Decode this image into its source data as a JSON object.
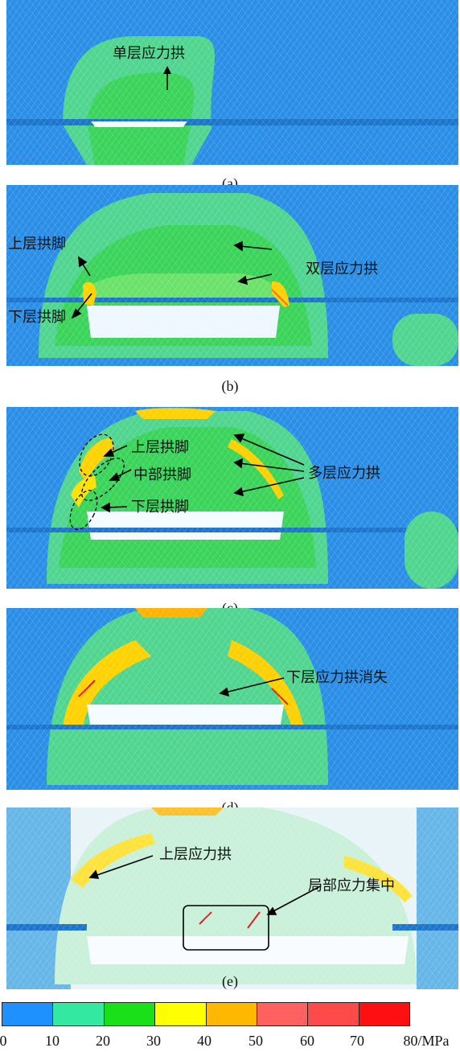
{
  "panels": [
    {
      "caption": "(a)",
      "labels": [
        "单层应力拱"
      ]
    },
    {
      "caption": "(b)",
      "labels": [
        "上层拱脚",
        "双层应力拱",
        "下层拱脚"
      ]
    },
    {
      "caption": "(c)",
      "labels": [
        "上层拱脚",
        "中部拱脚",
        "多层应力拱",
        "下层拱脚"
      ]
    },
    {
      "caption": "(d)",
      "labels": [
        "下层应力拱消失"
      ]
    },
    {
      "caption": "(e)",
      "labels": [
        "上层应力拱",
        "局部应力集中"
      ]
    }
  ],
  "colorbar": {
    "colors": [
      "#1e90ff",
      "#33e8a0",
      "#19e019",
      "#ffff00",
      "#ffb800",
      "#ff6060",
      "#ff4a4a",
      "#ff1010"
    ],
    "ticks": [
      "0",
      "10",
      "20",
      "30",
      "40",
      "50",
      "60",
      "70",
      "80/MPa"
    ]
  }
}
